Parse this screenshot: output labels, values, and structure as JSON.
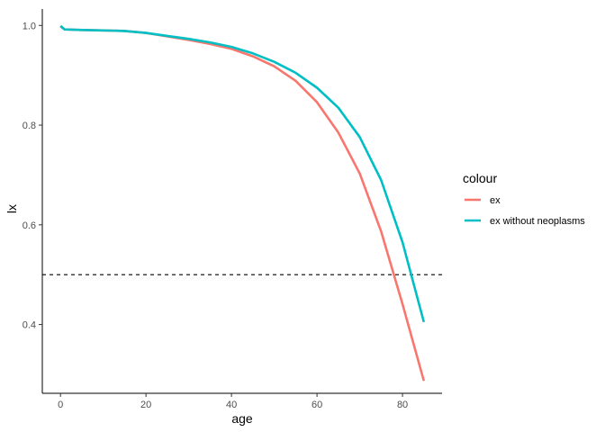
{
  "chart_data": {
    "type": "line",
    "xlabel": "age",
    "ylabel": "lx",
    "xlim": [
      -4.25,
      89.25
    ],
    "ylim": [
      0.262,
      1.033
    ],
    "x_ticks": [
      0,
      20,
      40,
      60,
      80
    ],
    "y_ticks": [
      0.4,
      0.6,
      0.8,
      1.0
    ],
    "x_tick_labels": [
      "0",
      "20",
      "40",
      "60",
      "80"
    ],
    "y_tick_labels": [
      "0.4",
      "0.6",
      "0.8",
      "1.0"
    ],
    "grid": false,
    "legend": {
      "title": "colour",
      "position": "right"
    },
    "hline": {
      "y": 0.5,
      "style": "dashed",
      "color": "#000000"
    },
    "series": [
      {
        "name": "ex",
        "color": "#F8766D",
        "x": [
          0,
          1,
          5,
          10,
          15,
          20,
          25,
          30,
          35,
          40,
          45,
          50,
          55,
          60,
          65,
          70,
          75,
          80,
          85
        ],
        "y": [
          0.998,
          0.992,
          0.991,
          0.99,
          0.989,
          0.985,
          0.978,
          0.971,
          0.963,
          0.953,
          0.938,
          0.918,
          0.889,
          0.846,
          0.785,
          0.703,
          0.587,
          0.441,
          0.287
        ]
      },
      {
        "name": "ex without neoplasms",
        "color": "#00BFC4",
        "x": [
          0,
          1,
          5,
          10,
          15,
          20,
          25,
          30,
          35,
          40,
          45,
          50,
          55,
          60,
          65,
          70,
          75,
          80,
          85
        ],
        "y": [
          0.999,
          0.992,
          0.991,
          0.99,
          0.989,
          0.985,
          0.979,
          0.973,
          0.966,
          0.957,
          0.944,
          0.927,
          0.905,
          0.875,
          0.835,
          0.776,
          0.69,
          0.565,
          0.405
        ]
      }
    ]
  }
}
